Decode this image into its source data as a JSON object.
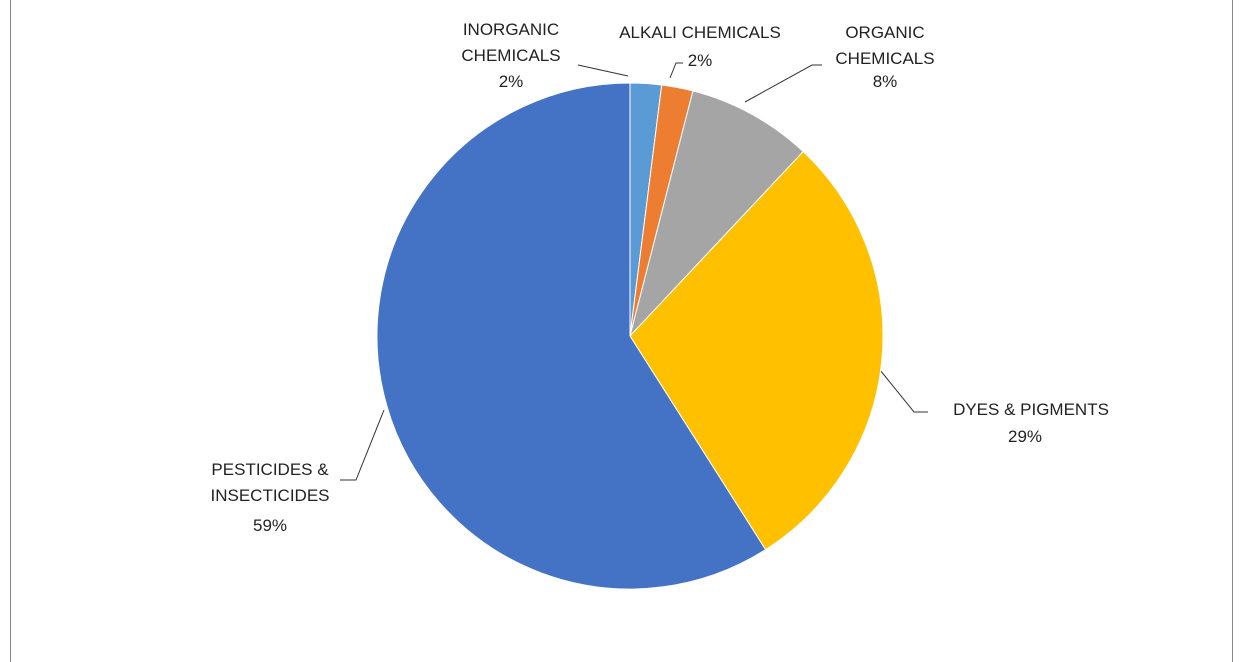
{
  "chart_data": {
    "type": "pie",
    "categories": [
      "INORGANIC CHEMICALS",
      "ALKALI CHEMICALS",
      "ORGANIC CHEMICALS",
      "DYES & PIGMENTS",
      "PESTICIDES & INSECTICIDES"
    ],
    "values": [
      2,
      2,
      8,
      29,
      59
    ],
    "value_labels": [
      "2%",
      "2%",
      "8%",
      "29%",
      "59%"
    ],
    "colors": [
      "#5b9bd5",
      "#ed7d31",
      "#a5a5a5",
      "#ffc000",
      "#4472c4"
    ]
  }
}
